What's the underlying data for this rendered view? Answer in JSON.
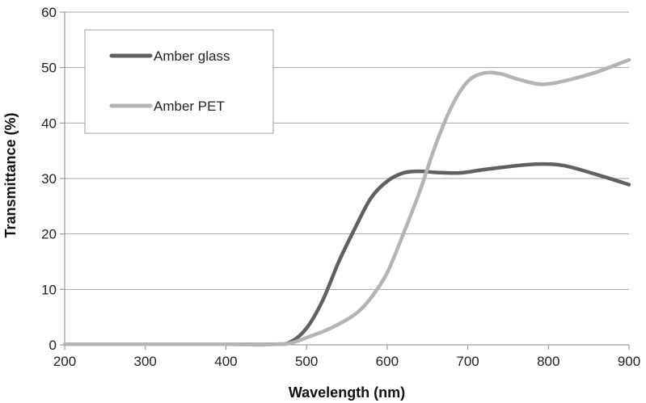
{
  "chart_data": {
    "type": "line",
    "title": "",
    "xlabel": "Wavelength (nm)",
    "ylabel": "Transmittance (%)",
    "xlim": [
      200,
      900
    ],
    "ylim": [
      0,
      60
    ],
    "x_ticks": [
      200,
      300,
      400,
      500,
      600,
      700,
      800,
      900
    ],
    "y_ticks": [
      0,
      10,
      20,
      30,
      40,
      50,
      60
    ],
    "grid": true,
    "legend_position": "top-left",
    "series": [
      {
        "name": "Amber glass",
        "color": "#606060",
        "points": [
          [
            200,
            0.1
          ],
          [
            300,
            0.1
          ],
          [
            400,
            0.1
          ],
          [
            460,
            0.1
          ],
          [
            480,
            0.5
          ],
          [
            500,
            3
          ],
          [
            520,
            8
          ],
          [
            540,
            15
          ],
          [
            560,
            21
          ],
          [
            580,
            26.5
          ],
          [
            600,
            29.5
          ],
          [
            620,
            31
          ],
          [
            640,
            31.3
          ],
          [
            660,
            31.1
          ],
          [
            690,
            31
          ],
          [
            720,
            31.6
          ],
          [
            760,
            32.3
          ],
          [
            790,
            32.6
          ],
          [
            820,
            32.3
          ],
          [
            860,
            30.7
          ],
          [
            900,
            28.9
          ]
        ]
      },
      {
        "name": "Amber PET",
        "color": "#b4b4b4",
        "points": [
          [
            200,
            0.1
          ],
          [
            300,
            0.1
          ],
          [
            400,
            0.1
          ],
          [
            460,
            0.1
          ],
          [
            480,
            0.3
          ],
          [
            500,
            1.3
          ],
          [
            530,
            3
          ],
          [
            560,
            5.5
          ],
          [
            580,
            8.5
          ],
          [
            600,
            13
          ],
          [
            620,
            20
          ],
          [
            640,
            27.5
          ],
          [
            660,
            36
          ],
          [
            680,
            43
          ],
          [
            700,
            47.5
          ],
          [
            720,
            49
          ],
          [
            740,
            48.9
          ],
          [
            760,
            48
          ],
          [
            790,
            47
          ],
          [
            820,
            47.6
          ],
          [
            860,
            49.2
          ],
          [
            900,
            51.4
          ]
        ]
      }
    ]
  }
}
